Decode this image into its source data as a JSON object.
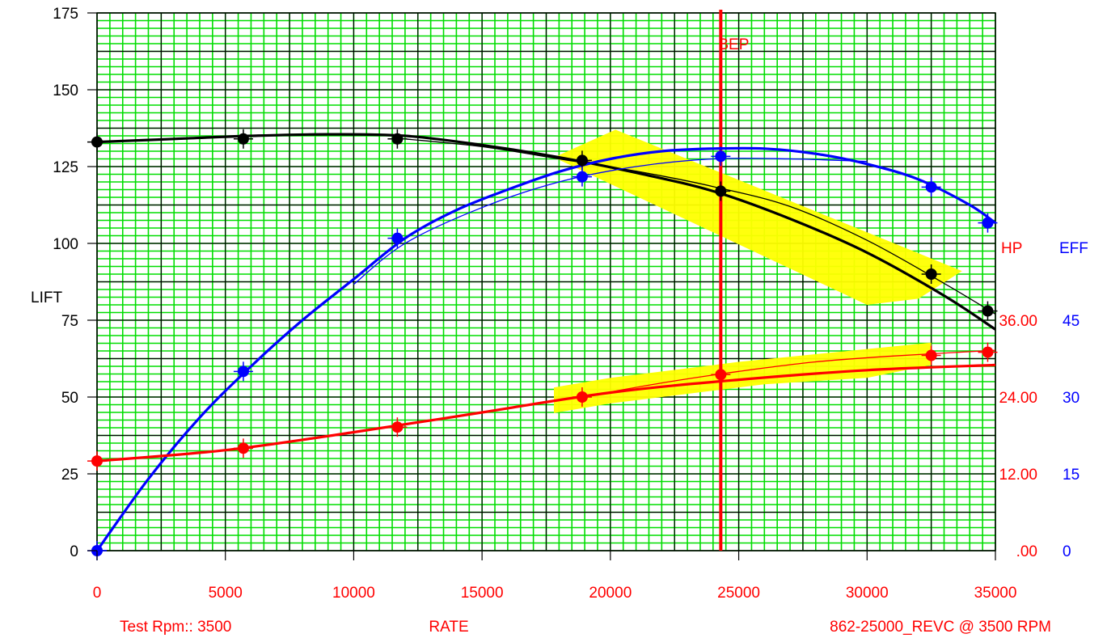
{
  "chart_data": {
    "type": "line",
    "title": "",
    "bep_label": "BEP",
    "bep_x": 24300,
    "xlabel": "RATE",
    "ylabel_left": "LIFT",
    "ylabel_hp": "HP",
    "ylabel_eff": "EFF",
    "xlim": [
      0,
      35000
    ],
    "ylim": [
      0,
      175
    ],
    "hp_lim": [
      0,
      84
    ],
    "eff_lim": [
      0,
      105
    ],
    "grid": true,
    "x_ticks": [
      "0",
      "5000",
      "10000",
      "15000",
      "20000",
      "25000",
      "30000",
      "35000"
    ],
    "y_ticks": [
      "0",
      "25",
      "50",
      "75",
      "100",
      "125",
      "150",
      "175"
    ],
    "hp_ticks": [
      ".00",
      "12.00",
      "24.00",
      "36.00"
    ],
    "eff_ticks": [
      "0",
      "15",
      "30",
      "45"
    ],
    "footer_left": "Test  Rpm::  3500",
    "footer_right": "862-25000_REVC @  3500 RPM",
    "colors": {
      "lift": "#000000",
      "hp": "#ff0000",
      "eff": "#0000ff",
      "grid_minor": "#00dd00",
      "grid_major": "#000000",
      "background": "#00ff00",
      "band": "#ffff00",
      "bep": "#ff0000"
    },
    "series": [
      {
        "name": "LIFT",
        "axis": "left",
        "test_points": {
          "x": [
            0,
            5700,
            11700,
            18900,
            24300,
            32500,
            34700
          ],
          "y": [
            133,
            134,
            134,
            127,
            117,
            90,
            78
          ]
        },
        "fit_curve": {
          "x": [
            0,
            3000,
            6000,
            9000,
            12000,
            15000,
            18000,
            21000,
            24000,
            27000,
            30000,
            33000,
            35000
          ],
          "y": [
            133,
            134,
            135,
            135.5,
            135,
            132,
            128,
            123,
            117,
            108,
            97,
            83,
            72
          ]
        },
        "ref_curve": {
          "x": [
            12000,
            15000,
            18000,
            21000,
            24000,
            27000,
            30000,
            33000,
            35000
          ],
          "y": [
            134,
            131.5,
            127.5,
            123.5,
            118.5,
            112,
            101,
            87,
            77
          ]
        }
      },
      {
        "name": "EFF",
        "axis": "eff",
        "test_points": {
          "x": [
            0,
            5700,
            11700,
            18900,
            24300,
            32500,
            34700
          ],
          "y": [
            0,
            35,
            61,
            73,
            77,
            71,
            64
          ]
        },
        "fit_curve": {
          "x": [
            0,
            2000,
            4000,
            6000,
            8000,
            10000,
            12000,
            14000,
            16000,
            18000,
            20000,
            22000,
            24000,
            26000,
            28000,
            30000,
            32000,
            34000,
            35000
          ],
          "y": [
            0,
            14,
            26,
            36,
            45,
            53,
            61,
            66.5,
            70.5,
            74,
            76.5,
            78,
            78.5,
            78.5,
            77.5,
            75.5,
            72.5,
            67.5,
            64
          ]
        },
        "ref_curve": {
          "x": [
            10000,
            12000,
            15000,
            18000,
            21000,
            24000,
            27000,
            30000
          ],
          "y": [
            52,
            60,
            67,
            72,
            75,
            76.5,
            76.5,
            76
          ]
        }
      },
      {
        "name": "HP",
        "axis": "hp",
        "test_points": {
          "x": [
            0,
            5700,
            11700,
            18900,
            24300,
            32500,
            34700
          ],
          "y": [
            14,
            16,
            19.3,
            24,
            27.5,
            30.5,
            31
          ]
        },
        "fit_curve": {
          "x": [
            0,
            5000,
            10000,
            15000,
            20000,
            25000,
            30000,
            35000
          ],
          "y": [
            14,
            15.7,
            18.5,
            21.6,
            24.7,
            26.7,
            28.2,
            29
          ]
        },
        "ref_curve": {
          "x": [
            18900,
            22000,
            25000,
            28000,
            31000,
            35000
          ],
          "y": [
            24,
            26.2,
            28,
            29.5,
            30.4,
            31.3
          ]
        }
      }
    ],
    "bands": [
      {
        "name": "lift-band",
        "axis": "left",
        "x": [
          17800,
          20200,
          33700,
          32000,
          30000,
          17800
        ],
        "y": [
          128,
          137,
          91,
          82,
          80,
          128
        ]
      },
      {
        "name": "hp-band",
        "axis": "hp",
        "x": [
          17800,
          20000,
          25000,
          32500,
          32500,
          30000,
          26000,
          20000,
          17800
        ],
        "y": [
          25.5,
          27,
          29.5,
          32.5,
          29,
          27,
          26,
          23,
          21.5
        ]
      }
    ]
  }
}
